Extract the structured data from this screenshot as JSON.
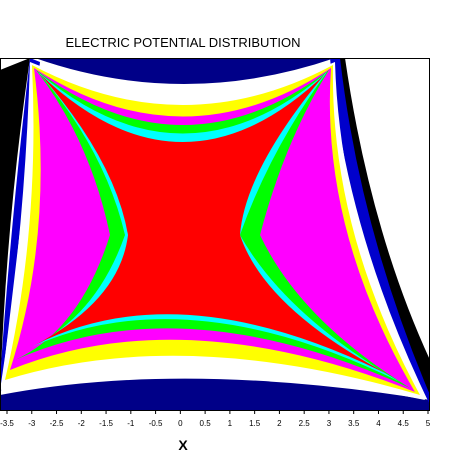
{
  "chart_data": {
    "type": "heatmap",
    "title": "ELECTRIC POTENTIAL DISTRIBUTION",
    "xlabel": "X",
    "ylabel": "",
    "xlim": [
      -3.5,
      5
    ],
    "x_ticks": [
      "-3.5",
      "-3",
      "-2.5",
      "-2",
      "-1.5",
      "-1",
      "-0.5",
      "0",
      "0.5",
      "1",
      "1.5",
      "2",
      "2.5",
      "3",
      "3.5",
      "4",
      "4.5",
      "5"
    ],
    "field": "saddle-shaped potential contours",
    "legend": "none",
    "grid": false,
    "colors": [
      "#000000",
      "#0000cc",
      "#00ff00",
      "#00ffff",
      "#ff0000",
      "#ff00ff",
      "#ffff00",
      "#ffffff",
      "#000088",
      "#0000ff"
    ]
  }
}
